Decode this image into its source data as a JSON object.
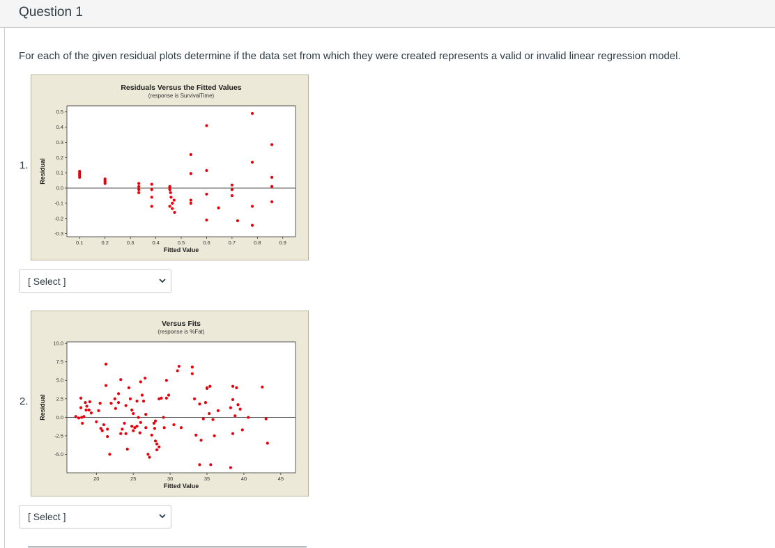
{
  "question": {
    "title": "Question 1",
    "text": "For each of the given residual plots determine if the data set from which they were created represents a valid or invalid linear regression model."
  },
  "items": [
    {
      "number": "1.",
      "select_label": "[ Select ]"
    },
    {
      "number": "2.",
      "select_label": "[ Select ]"
    }
  ],
  "colors": {
    "points": "#e8000b",
    "panel_bg": "#ece9d8",
    "plot_bg": "#ffffff",
    "text": "#2d3b45"
  },
  "chart_data": [
    {
      "type": "scatter",
      "title": "Residuals Versus the Fitted Values",
      "subtitle": "(response is SurvivalTime)",
      "xlabel": "Fitted Value",
      "ylabel": "Residual",
      "xlim": [
        0.05,
        0.95
      ],
      "ylim": [
        -0.32,
        0.54
      ],
      "xticks": [
        0.1,
        0.2,
        0.3,
        0.4,
        0.5,
        0.6,
        0.7,
        0.8,
        0.9
      ],
      "yticks": [
        0.5,
        0.4,
        0.3,
        0.2,
        0.1,
        0.0,
        -0.1,
        -0.2,
        -0.3
      ],
      "xtick_labels": [
        "0.1",
        "0.2",
        "0.3",
        "0.4",
        "0.5",
        "0.6",
        "0.7",
        "0.8",
        "0.9"
      ],
      "ytick_labels": [
        "0.5",
        "0.4",
        "0.3",
        "0.2",
        "0.1",
        "0.0",
        "-0.1",
        "-0.2",
        "-0.3"
      ],
      "reference_line": 0,
      "grid": false,
      "points": [
        [
          0.1,
          0.11
        ],
        [
          0.1,
          0.1
        ],
        [
          0.1,
          0.09
        ],
        [
          0.1,
          0.08
        ],
        [
          0.1,
          0.07
        ],
        [
          0.2,
          0.06
        ],
        [
          0.2,
          0.05
        ],
        [
          0.2,
          0.04
        ],
        [
          0.2,
          0.03
        ],
        [
          0.333,
          0.03
        ],
        [
          0.333,
          0.01
        ],
        [
          0.333,
          -0.01
        ],
        [
          0.333,
          -0.03
        ],
        [
          0.384,
          0.025
        ],
        [
          0.384,
          -0.01
        ],
        [
          0.384,
          -0.06
        ],
        [
          0.384,
          -0.12
        ],
        [
          0.455,
          0.01
        ],
        [
          0.455,
          0.0
        ],
        [
          0.455,
          -0.01
        ],
        [
          0.458,
          -0.03
        ],
        [
          0.46,
          -0.06
        ],
        [
          0.465,
          -0.1
        ],
        [
          0.472,
          -0.08
        ],
        [
          0.455,
          -0.12
        ],
        [
          0.465,
          -0.135
        ],
        [
          0.474,
          -0.16
        ],
        [
          0.538,
          0.22
        ],
        [
          0.538,
          0.095
        ],
        [
          0.538,
          -0.08
        ],
        [
          0.538,
          -0.1
        ],
        [
          0.6,
          0.41
        ],
        [
          0.6,
          0.115
        ],
        [
          0.6,
          -0.04
        ],
        [
          0.6,
          -0.21
        ],
        [
          0.647,
          -0.13
        ],
        [
          0.7,
          0.02
        ],
        [
          0.7,
          -0.01
        ],
        [
          0.7,
          -0.05
        ],
        [
          0.722,
          -0.215
        ],
        [
          0.78,
          0.49
        ],
        [
          0.78,
          0.17
        ],
        [
          0.78,
          -0.12
        ],
        [
          0.78,
          -0.245
        ],
        [
          0.857,
          0.285
        ],
        [
          0.857,
          0.07
        ],
        [
          0.857,
          0.01
        ],
        [
          0.857,
          -0.09
        ]
      ]
    },
    {
      "type": "scatter",
      "title": "Versus Fits",
      "subtitle": "(response is %Fat)",
      "xlabel": "Fitted Value",
      "ylabel": "Residual",
      "xlim": [
        16,
        47
      ],
      "ylim": [
        -7.5,
        10.2
      ],
      "xticks": [
        20,
        25,
        30,
        35,
        40,
        45
      ],
      "yticks": [
        10.0,
        7.5,
        5.0,
        2.5,
        0.0,
        -2.5,
        -5.0
      ],
      "xtick_labels": [
        "20",
        "25",
        "30",
        "35",
        "40",
        "45"
      ],
      "ytick_labels": [
        "10.0",
        "7.5",
        "5.0",
        "2.5",
        "0.0",
        "-2.5",
        "-5.0"
      ],
      "reference_line": 0,
      "grid": false,
      "points": [
        [
          17.2,
          0.1
        ],
        [
          17.6,
          -0.1
        ],
        [
          18.0,
          0.0
        ],
        [
          18.3,
          0.1
        ],
        [
          17.9,
          1.3
        ],
        [
          18.6,
          1.0
        ],
        [
          19.0,
          1.0
        ],
        [
          18.1,
          -0.8
        ],
        [
          17.9,
          2.6
        ],
        [
          18.5,
          2.0
        ],
        [
          18.7,
          1.5
        ],
        [
          19.1,
          2.1
        ],
        [
          19.3,
          0.6
        ],
        [
          20.0,
          -0.6
        ],
        [
          20.3,
          0.9
        ],
        [
          20.5,
          1.9
        ],
        [
          21.0,
          -1.0
        ],
        [
          20.6,
          -1.5
        ],
        [
          20.8,
          -1.8
        ],
        [
          21.5,
          -1.6
        ],
        [
          21.3,
          7.2
        ],
        [
          21.3,
          4.3
        ],
        [
          21.5,
          -2.6
        ],
        [
          21.8,
          -5.0
        ],
        [
          22.0,
          1.9
        ],
        [
          22.5,
          2.5
        ],
        [
          22.6,
          1.2
        ],
        [
          23.0,
          3.2
        ],
        [
          23.3,
          5.1
        ],
        [
          23.0,
          2.0
        ],
        [
          23.5,
          -1.6
        ],
        [
          23.3,
          -2.2
        ],
        [
          23.8,
          -0.8
        ],
        [
          24.0,
          1.6
        ],
        [
          24.0,
          -2.2
        ],
        [
          24.2,
          -4.3
        ],
        [
          24.4,
          4.0
        ],
        [
          24.6,
          2.5
        ],
        [
          24.8,
          1.0
        ],
        [
          24.8,
          -1.2
        ],
        [
          25.0,
          0.5
        ],
        [
          25.0,
          -1.8
        ],
        [
          25.2,
          -1.4
        ],
        [
          25.5,
          2.2
        ],
        [
          25.5,
          -1.2
        ],
        [
          25.7,
          0.0
        ],
        [
          25.9,
          -2.1
        ],
        [
          26.0,
          -0.7
        ],
        [
          26.0,
          4.8
        ],
        [
          26.2,
          3.0
        ],
        [
          26.6,
          5.3
        ],
        [
          26.4,
          2.2
        ],
        [
          26.7,
          0.4
        ],
        [
          26.7,
          -1.4
        ],
        [
          27.0,
          -5.0
        ],
        [
          27.2,
          -5.4
        ],
        [
          27.5,
          -2.4
        ],
        [
          27.8,
          -0.8
        ],
        [
          27.9,
          -1.5
        ],
        [
          28.0,
          -0.5
        ],
        [
          28.0,
          -3.2
        ],
        [
          28.2,
          -3.6
        ],
        [
          28.2,
          -4.4
        ],
        [
          28.5,
          -4.0
        ],
        [
          28.5,
          2.5
        ],
        [
          28.8,
          2.6
        ],
        [
          29.1,
          0.0
        ],
        [
          29.2,
          -1.4
        ],
        [
          29.5,
          2.6
        ],
        [
          29.5,
          5.0
        ],
        [
          29.8,
          3.0
        ],
        [
          30.5,
          -1.0
        ],
        [
          31.0,
          6.3
        ],
        [
          31.2,
          6.9
        ],
        [
          31.5,
          -1.4
        ],
        [
          33.0,
          6.8
        ],
        [
          33.0,
          5.9
        ],
        [
          33.3,
          2.5
        ],
        [
          33.5,
          -2.4
        ],
        [
          34.0,
          1.8
        ],
        [
          34.5,
          -0.2
        ],
        [
          34.2,
          -3.1
        ],
        [
          34.0,
          -6.4
        ],
        [
          34.8,
          2.0
        ],
        [
          35.0,
          3.9
        ],
        [
          35.3,
          0.5
        ],
        [
          35.4,
          4.2
        ],
        [
          35.0,
          4.0
        ],
        [
          35.5,
          -6.4
        ],
        [
          35.8,
          -0.3
        ],
        [
          36.0,
          -2.5
        ],
        [
          36.5,
          0.9
        ],
        [
          38.2,
          1.3
        ],
        [
          38.5,
          2.4
        ],
        [
          38.5,
          -2.2
        ],
        [
          38.2,
          -6.8
        ],
        [
          38.8,
          0.2
        ],
        [
          38.5,
          4.2
        ],
        [
          39.0,
          4.0
        ],
        [
          39.2,
          1.7
        ],
        [
          39.5,
          1.1
        ],
        [
          39.8,
          -1.7
        ],
        [
          40.6,
          0.0
        ],
        [
          42.5,
          4.1
        ],
        [
          43.0,
          -0.2
        ],
        [
          43.2,
          -3.5
        ]
      ]
    }
  ]
}
